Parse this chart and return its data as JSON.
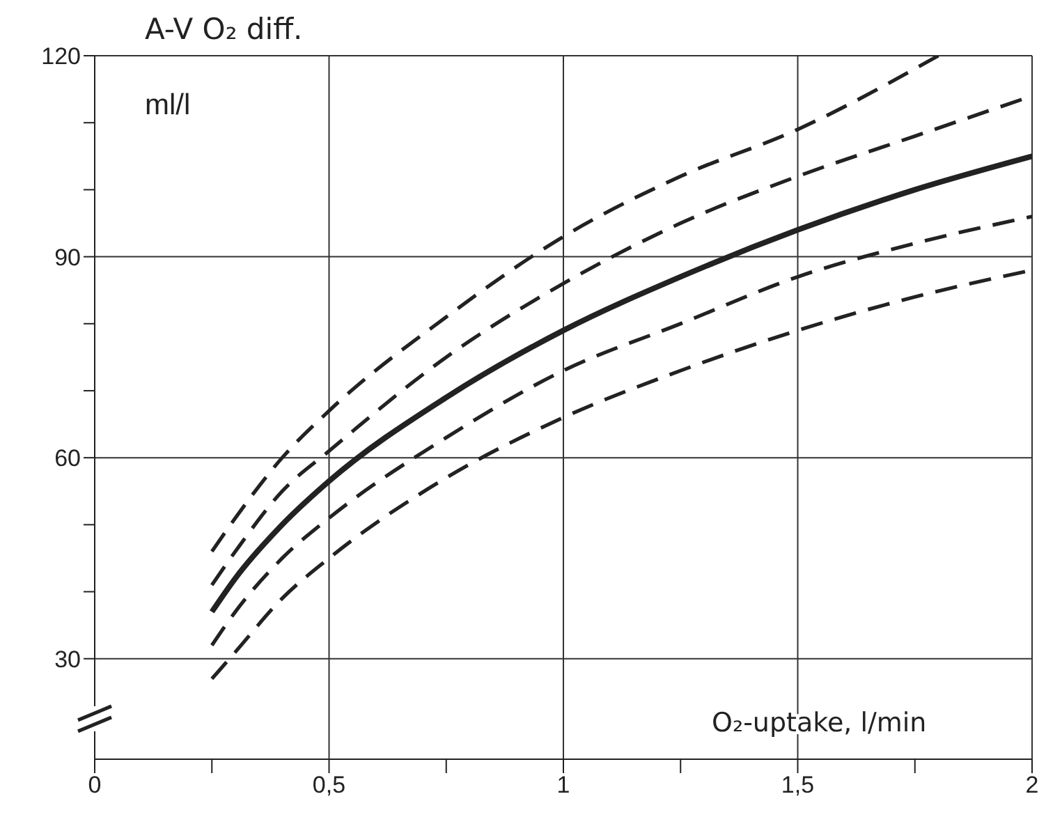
{
  "chart_data": {
    "type": "line",
    "ylabel": "A-V O₂ diff.",
    "xlabel": "O₂-uptake, l/min",
    "annotations": [
      "ml/l"
    ],
    "xlim": [
      0,
      2
    ],
    "xticks": [
      0,
      {
        "value": 0.25,
        "label": null
      },
      {
        "value": 0.5,
        "label": "0,5"
      },
      {
        "value": 0.75,
        "label": null
      },
      1,
      {
        "value": 1.25,
        "label": null
      },
      {
        "value": 1.5,
        "label": "1,5"
      },
      {
        "value": 1.75,
        "label": null
      },
      2
    ],
    "ylim": [
      15,
      120
    ],
    "yticks": [
      {
        "value": 20,
        "label": null
      },
      30,
      {
        "value": 40,
        "label": null
      },
      {
        "value": 50,
        "label": null
      },
      60,
      {
        "value": 70,
        "label": null
      },
      {
        "value": 80,
        "label": null
      },
      90,
      {
        "value": 100,
        "label": null
      },
      {
        "value": 110,
        "label": null
      },
      120
    ],
    "grid": true,
    "marker": "none",
    "series": [
      {
        "color": "#222222",
        "line_style": "dashed",
        "x": [
          0.25,
          0.3,
          0.4,
          0.5,
          0.75,
          1,
          1.25,
          1.5,
          1.8
        ],
        "values": [
          46,
          51,
          60,
          67,
          81,
          93,
          102,
          109,
          120
        ]
      },
      {
        "color": "#222222",
        "line_style": "dashed",
        "x": [
          0.25,
          0.3,
          0.4,
          0.5,
          0.75,
          1,
          1.25,
          1.5,
          1.75,
          2
        ],
        "values": [
          41,
          46,
          55,
          61,
          75,
          86,
          95,
          102,
          108,
          114
        ]
      },
      {
        "color": "#222222",
        "line_style": "solid",
        "x": [
          0.25,
          0.3,
          0.4,
          0.5,
          0.75,
          1,
          1.25,
          1.5,
          1.75,
          2
        ],
        "values": [
          37,
          42,
          50,
          56.5,
          69,
          79,
          87,
          94,
          100,
          105
        ]
      },
      {
        "color": "#222222",
        "line_style": "dashed",
        "x": [
          0.25,
          0.3,
          0.4,
          0.5,
          0.75,
          1,
          1.25,
          1.5,
          1.75,
          2
        ],
        "values": [
          32,
          37,
          45,
          51,
          63,
          73,
          80,
          87,
          92,
          96
        ]
      },
      {
        "color": "#222222",
        "line_style": "dashed",
        "x": [
          0.25,
          0.3,
          0.4,
          0.5,
          0.75,
          1,
          1.25,
          1.5,
          1.75,
          2
        ],
        "values": [
          27,
          31,
          39,
          45,
          57,
          66,
          73,
          79,
          84,
          88
        ]
      }
    ]
  }
}
